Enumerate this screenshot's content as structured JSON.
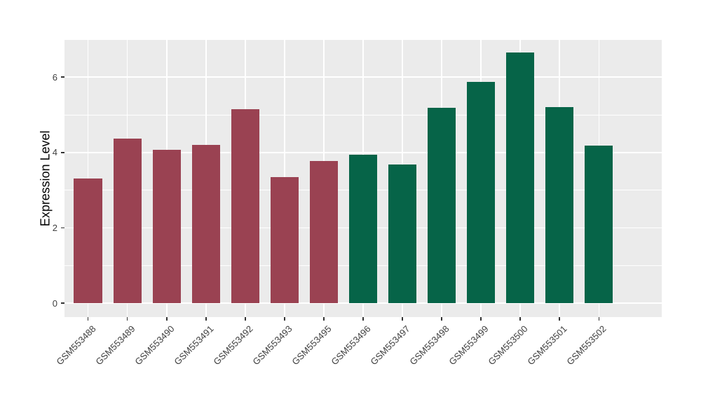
{
  "figure": {
    "background": "#FFFFFF",
    "panel_background": "#EBEBEB",
    "grid_major_color": "#FFFFFF",
    "grid_minor_color": "#FFFFFF",
    "axis_text_color": "#404040",
    "axis_title_color": "#000000",
    "tick_mark_color": "#333333",
    "red_group_color": "#9A4252",
    "green_group_color": "#066448"
  },
  "chart_data": {
    "type": "bar",
    "title": "",
    "xlabel": "",
    "ylabel": "Expression Level",
    "categories": [
      "GSM553488",
      "GSM553489",
      "GSM553490",
      "GSM553491",
      "GSM553492",
      "GSM553493",
      "GSM553495",
      "GSM553496",
      "GSM553497",
      "GSM553498",
      "GSM553499",
      "GSM553500",
      "GSM553501",
      "GSM553502"
    ],
    "values": [
      3.31,
      4.37,
      4.07,
      4.2,
      5.15,
      3.35,
      3.77,
      3.94,
      3.68,
      5.19,
      5.87,
      6.66,
      5.2,
      4.18
    ],
    "bar_colors": [
      "#9A4252",
      "#9A4252",
      "#9A4252",
      "#9A4252",
      "#9A4252",
      "#9A4252",
      "#9A4252",
      "#066448",
      "#066448",
      "#066448",
      "#066448",
      "#066448",
      "#066448",
      "#066448"
    ],
    "yticks": [
      0,
      2,
      4,
      6
    ],
    "minor_yticks": [
      1,
      3,
      5
    ],
    "ylim": [
      -0.37,
      6.99
    ],
    "grid": true,
    "legend": false,
    "bar_width_fraction": 0.72,
    "x_label_angle_deg": 45
  }
}
